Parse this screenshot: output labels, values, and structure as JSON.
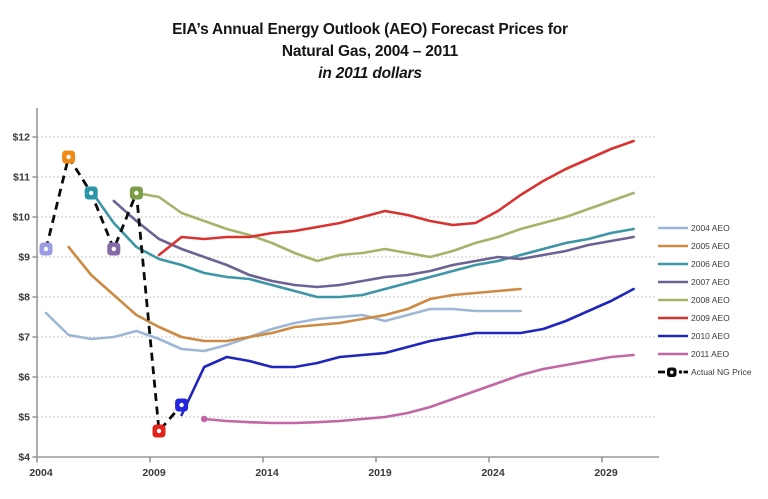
{
  "chart_data": {
    "type": "line",
    "title_line1": "EIA’s Annual Energy Outlook (AEO) Forecast Prices for",
    "title_line2": "Natural Gas, 2004 – 2011",
    "title_line3": "in 2011 dollars",
    "x_axis": {
      "ticks": [
        2004,
        2009,
        2014,
        2019,
        2024,
        2029
      ],
      "range": [
        2004,
        2031.5
      ]
    },
    "y_axis": {
      "ticks": [
        4,
        5,
        6,
        7,
        8,
        9,
        10,
        11,
        12
      ],
      "tick_prefix": "$",
      "range": [
        4,
        12
      ]
    },
    "grid": "horizontal-dotted",
    "legend_position": "right",
    "series": [
      {
        "name": "2004 AEO",
        "color": "#9FB7D6",
        "start_year": 2004,
        "values": [
          7.6,
          7.05,
          6.95,
          7.0,
          7.15,
          6.95,
          6.7,
          6.65,
          6.8,
          7.0,
          7.2,
          7.35,
          7.45,
          7.5,
          7.55,
          7.4,
          7.55,
          7.7,
          7.7,
          7.65,
          7.65,
          7.65
        ]
      },
      {
        "name": "2005 AEO",
        "color": "#CD8A42",
        "start_year": 2005,
        "values": [
          9.25,
          8.55,
          8.05,
          7.55,
          7.25,
          7.0,
          6.9,
          6.9,
          7.0,
          7.1,
          7.25,
          7.3,
          7.35,
          7.45,
          7.55,
          7.7,
          7.95,
          8.05,
          8.1,
          8.15,
          8.2
        ]
      },
      {
        "name": "2006 AEO",
        "color": "#3D96A6",
        "start_year": 2006,
        "values": [
          10.65,
          9.85,
          9.25,
          8.95,
          8.8,
          8.6,
          8.5,
          8.45,
          8.3,
          8.15,
          8.0,
          8.0,
          8.05,
          8.2,
          8.35,
          8.5,
          8.65,
          8.8,
          8.9,
          9.05,
          9.2,
          9.35,
          9.45,
          9.6,
          9.7
        ]
      },
      {
        "name": "2007 AEO",
        "color": "#6E6294",
        "start_year": 2007,
        "values": [
          10.4,
          9.9,
          9.45,
          9.2,
          9.0,
          8.8,
          8.55,
          8.4,
          8.3,
          8.25,
          8.3,
          8.4,
          8.5,
          8.55,
          8.65,
          8.8,
          8.9,
          9.0,
          8.95,
          9.05,
          9.15,
          9.3,
          9.4,
          9.5
        ]
      },
      {
        "name": "2008 AEO",
        "color": "#A2B56A",
        "start_year": 2008,
        "values": [
          10.6,
          10.5,
          10.1,
          9.9,
          9.7,
          9.55,
          9.35,
          9.1,
          8.9,
          9.05,
          9.1,
          9.2,
          9.1,
          9.0,
          9.15,
          9.35,
          9.5,
          9.7,
          9.85,
          10.0,
          10.2,
          10.4,
          10.6
        ]
      },
      {
        "name": "2009 AEO",
        "color": "#D93330",
        "start_year": 2009,
        "values": [
          9.05,
          9.5,
          9.45,
          9.5,
          9.5,
          9.6,
          9.65,
          9.75,
          9.85,
          10.0,
          10.15,
          10.05,
          9.9,
          9.8,
          9.85,
          10.15,
          10.55,
          10.9,
          11.2,
          11.45,
          11.7,
          11.9
        ]
      },
      {
        "name": "2010 AEO",
        "color": "#2026BC",
        "start_year": 2010,
        "values": [
          5.05,
          6.25,
          6.5,
          6.4,
          6.25,
          6.25,
          6.35,
          6.5,
          6.55,
          6.6,
          6.75,
          6.9,
          7.0,
          7.1,
          7.1,
          7.1,
          7.2,
          7.4,
          7.65,
          7.9,
          8.2
        ]
      },
      {
        "name": "2011 AEO",
        "color": "#C366A5",
        "start_year": 2011,
        "start_dot": true,
        "values": [
          4.95,
          4.9,
          4.87,
          4.85,
          4.85,
          4.87,
          4.9,
          4.95,
          5.0,
          5.1,
          5.25,
          5.45,
          5.65,
          5.85,
          6.05,
          6.2,
          6.3,
          6.4,
          6.5,
          6.55
        ]
      },
      {
        "name": "Actual NG Price",
        "color": "#0A0A0A",
        "style": "dashed",
        "start_year": 2004,
        "values": [
          9.2,
          11.5,
          10.6,
          9.2,
          10.6,
          4.65,
          5.3
        ],
        "marker_colors": [
          "#9B9BE4",
          "#ED8A16",
          "#2B96A8",
          "#8569A8",
          "#7D9E48",
          "#E2241D",
          "#2424DC"
        ]
      }
    ]
  }
}
